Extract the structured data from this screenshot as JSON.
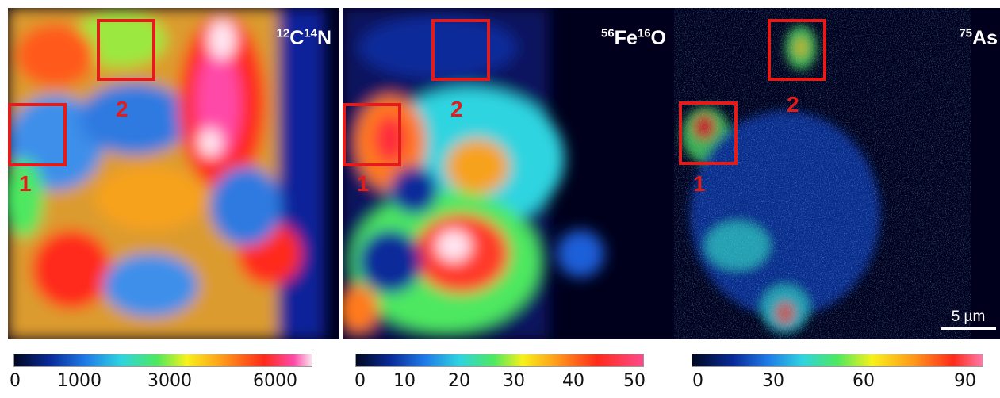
{
  "panels": [
    {
      "element": "C",
      "mass": "12",
      "element2": "N",
      "mass2": "14"
    },
    {
      "element": "Fe",
      "mass": "56",
      "element2": "O",
      "mass2": "16"
    },
    {
      "element": "As",
      "mass": "75",
      "element2": "",
      "mass2": ""
    }
  ],
  "rois": [
    "1",
    "2"
  ],
  "scalebar": {
    "label": "5 µm"
  },
  "colorbars": [
    {
      "ticks": [
        "0",
        "1000",
        "3000",
        "6000"
      ]
    },
    {
      "ticks": [
        "0",
        "10",
        "20",
        "30",
        "40",
        "50"
      ]
    },
    {
      "ticks": [
        "0",
        "30",
        "60",
        "90"
      ]
    }
  ],
  "colors": {
    "roi": "#e21b1b",
    "background_map": "#00001a"
  }
}
